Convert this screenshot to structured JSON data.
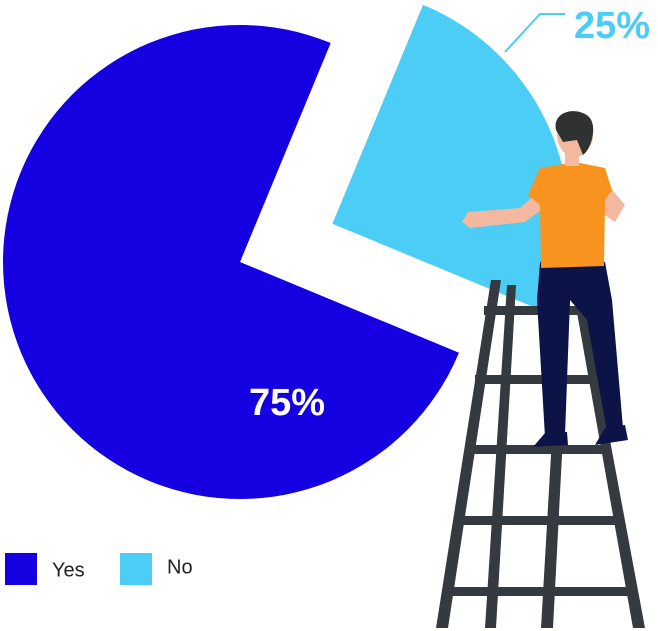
{
  "chart_data": {
    "type": "pie",
    "categories": [
      "Yes",
      "No"
    ],
    "values": [
      75,
      25
    ],
    "value_labels": [
      "75%",
      "25%"
    ],
    "colors": [
      "#1400e0",
      "#4ccdf5"
    ],
    "legend": "bottom-left"
  }
}
